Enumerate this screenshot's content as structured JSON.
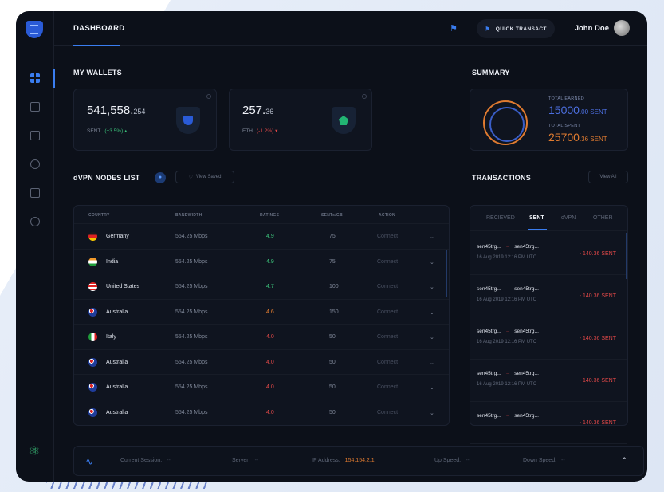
{
  "header": {
    "title": "DASHBOARD",
    "quick_transact": "QUICK TRANSACT",
    "user_name": "John Doe"
  },
  "wallets": {
    "title": "MY WALLETS",
    "items": [
      {
        "amount_main": "541,558.",
        "amount_dec": "254",
        "currency": "SENT",
        "change": "(+3.5%) ▴"
      },
      {
        "amount_main": "257.",
        "amount_dec": "36",
        "currency": "ETH",
        "change": "(-1.2%) ▾"
      }
    ]
  },
  "summary": {
    "title": "SUMMARY",
    "earned_label": "TOTAL EARNED",
    "earned_main": "15000",
    "earned_rest": ".00 SENT",
    "spent_label": "TOTAL SPENT",
    "spent_main": "25700",
    "spent_rest": ".36 SENT"
  },
  "nodes": {
    "title": "dVPN NODES LIST",
    "view_saved": "View Saved",
    "columns": [
      "COUNTRY",
      "BANDWIDTH",
      "RATINGS",
      "SENTs/GB",
      "ACTION"
    ],
    "rows": [
      {
        "country": "Germany",
        "bandwidth": "554.25 Mbps",
        "rating": "4.9",
        "price": "75",
        "action": "Connect",
        "rating_color": "#3cc47c",
        "flag": "germany"
      },
      {
        "country": "India",
        "bandwidth": "554.25 Mbps",
        "rating": "4.9",
        "price": "75",
        "action": "Connect",
        "rating_color": "#3cc47c",
        "flag": "india"
      },
      {
        "country": "United States",
        "bandwidth": "554.25 Mbps",
        "rating": "4.7",
        "price": "100",
        "action": "Connect",
        "rating_color": "#3cc47c",
        "flag": "usa"
      },
      {
        "country": "Australia",
        "bandwidth": "554.25 Mbps",
        "rating": "4.6",
        "price": "150",
        "action": "Connect",
        "rating_color": "#e07b30",
        "flag": "australia"
      },
      {
        "country": "Italy",
        "bandwidth": "554.25 Mbps",
        "rating": "4.0",
        "price": "50",
        "action": "Connect",
        "rating_color": "#e04848",
        "flag": "italy"
      },
      {
        "country": "Australia",
        "bandwidth": "554.25 Mbps",
        "rating": "4.0",
        "price": "50",
        "action": "Connect",
        "rating_color": "#e04848",
        "flag": "australia"
      },
      {
        "country": "Australia",
        "bandwidth": "554.25 Mbps",
        "rating": "4.0",
        "price": "50",
        "action": "Connect",
        "rating_color": "#e04848",
        "flag": "australia"
      },
      {
        "country": "Australia",
        "bandwidth": "554.25 Mbps",
        "rating": "4.0",
        "price": "50",
        "action": "Connect",
        "rating_color": "#e04848",
        "flag": "australia"
      }
    ]
  },
  "transactions": {
    "title": "TRANSACTIONS",
    "view_all": "View All",
    "tabs": [
      "RECIEVED",
      "SENT",
      "dVPN",
      "OTHER"
    ],
    "items": [
      {
        "from": "sen45trg...",
        "to": "sen45trg...",
        "date": "16 Aug 2019 12:16 PM UTC",
        "amount": "- 140.36 SENT"
      },
      {
        "from": "sen45trg...",
        "to": "sen45trg...",
        "date": "16 Aug 2019 12:16 PM UTC",
        "amount": "- 140.36 SENT"
      },
      {
        "from": "sen45trg...",
        "to": "sen45trg...",
        "date": "16 Aug 2019 12:16 PM UTC",
        "amount": "- 140.36 SENT"
      },
      {
        "from": "sen45trg...",
        "to": "sen45trg...",
        "date": "16 Aug 2019 12:16 PM UTC",
        "amount": "- 140.36 SENT"
      },
      {
        "from": "sen45trg...",
        "to": "sen45trg...",
        "date": "",
        "amount": "- 140.36 SENT"
      }
    ]
  },
  "session": {
    "current_label": "Current Session:",
    "current_value": "--",
    "server_label": "Server:",
    "server_value": "--",
    "ip_label": "IP Address:",
    "ip_value": "154.154.2.1",
    "up_label": "Up Speed:",
    "up_value": "--",
    "down_label": "Down Speed:",
    "down_value": "--"
  }
}
